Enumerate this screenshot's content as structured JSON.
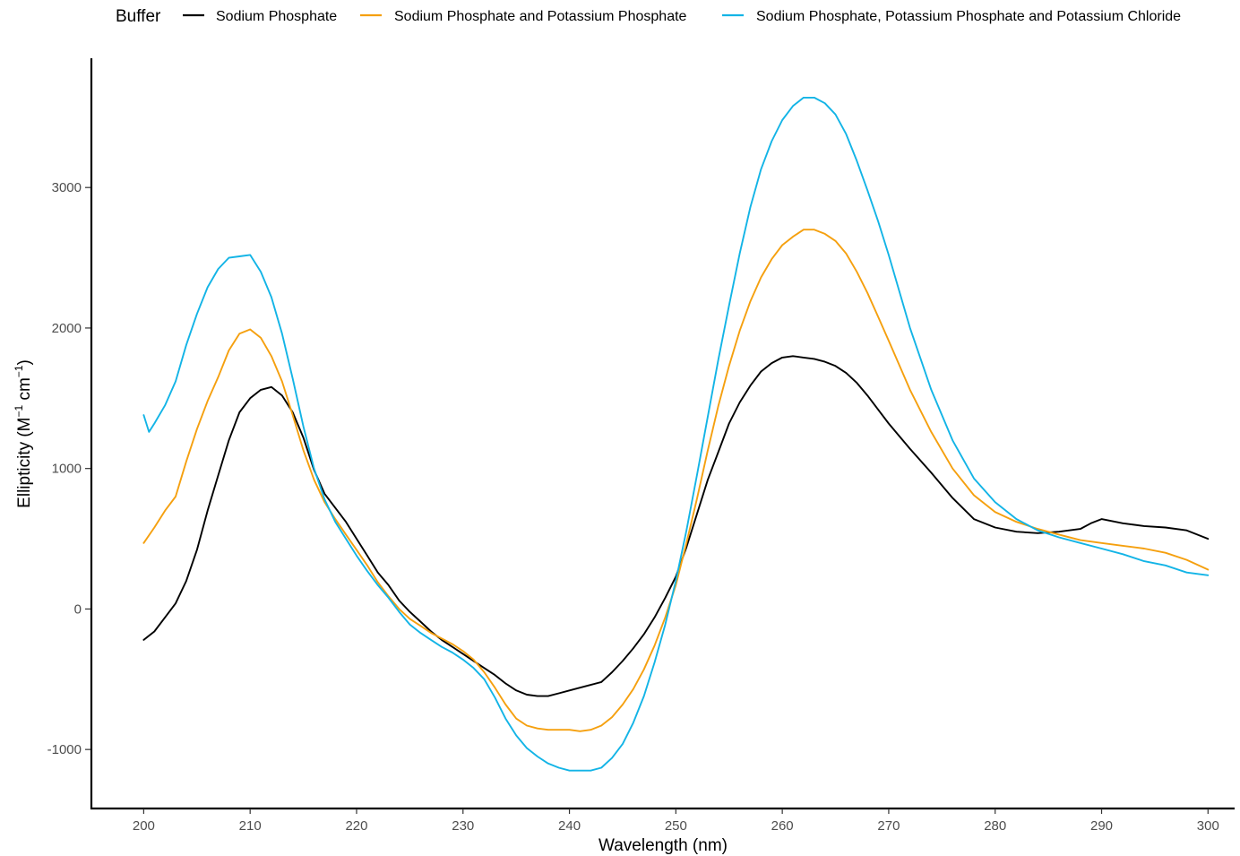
{
  "chart_data": {
    "type": "line",
    "legend": {
      "title": "Buffer",
      "position": "top"
    },
    "xlabel": "Wavelength (nm)",
    "ylabel": {
      "prefix": "Ellipticity  (M",
      "sup1": "−1",
      "mid": " cm",
      "sup2": "−1",
      "suffix": ")"
    },
    "xlim": [
      195,
      302.5
    ],
    "ylim": [
      -1420,
      3920
    ],
    "xticks": [
      200,
      210,
      220,
      230,
      240,
      250,
      260,
      270,
      280,
      290,
      300
    ],
    "xtick_labels": [
      "200",
      "210",
      "220",
      "230",
      "240",
      "250",
      "260",
      "270",
      "280",
      "290",
      "300"
    ],
    "yticks": [
      -1000,
      0,
      1000,
      2000,
      3000
    ],
    "ytick_labels": [
      "-1000",
      "0",
      "1000",
      "2000",
      "3000"
    ],
    "grid": false,
    "series": [
      {
        "name": "Sodium Phosphate",
        "color": "#000000",
        "x": [
          200,
          201,
          202,
          203,
          204,
          205,
          206,
          207,
          208,
          209,
          210,
          211,
          212,
          213,
          214,
          215,
          216,
          217,
          218,
          219,
          220,
          221,
          222,
          223,
          224,
          225,
          226,
          227,
          228,
          229,
          230,
          231,
          232,
          233,
          234,
          235,
          236,
          237,
          238,
          239,
          240,
          241,
          242,
          243,
          244,
          245,
          246,
          247,
          248,
          249,
          250,
          251,
          252,
          253,
          254,
          255,
          256,
          257,
          258,
          259,
          260,
          261,
          262,
          263,
          264,
          265,
          266,
          267,
          268,
          269,
          270,
          272,
          274,
          276,
          278,
          280,
          282,
          284,
          286,
          288,
          289,
          290,
          292,
          294,
          296,
          298,
          300
        ],
        "y": [
          -220,
          -160,
          -60,
          40,
          200,
          420,
          700,
          950,
          1200,
          1400,
          1500,
          1560,
          1580,
          1520,
          1400,
          1220,
          990,
          820,
          720,
          620,
          500,
          380,
          260,
          170,
          60,
          -20,
          -90,
          -160,
          -220,
          -270,
          -320,
          -370,
          -420,
          -470,
          -530,
          -580,
          -610,
          -620,
          -620,
          -600,
          -580,
          -560,
          -540,
          -520,
          -450,
          -370,
          -280,
          -180,
          -60,
          80,
          230,
          440,
          680,
          920,
          1120,
          1320,
          1470,
          1590,
          1690,
          1750,
          1790,
          1800,
          1790,
          1780,
          1760,
          1730,
          1680,
          1610,
          1520,
          1420,
          1320,
          1140,
          970,
          790,
          640,
          580,
          550,
          540,
          550,
          570,
          610,
          640,
          610,
          590,
          580,
          560,
          500
        ]
      },
      {
        "name": "Sodium Phosphate and Potassium Phosphate",
        "color": "#F5A00F",
        "x": [
          200,
          201,
          202,
          203,
          204,
          205,
          206,
          207,
          208,
          209,
          210,
          211,
          212,
          213,
          214,
          215,
          216,
          217,
          218,
          219,
          220,
          221,
          222,
          223,
          224,
          225,
          226,
          227,
          228,
          229,
          230,
          231,
          232,
          233,
          234,
          235,
          236,
          237,
          238,
          239,
          240,
          241,
          242,
          243,
          244,
          245,
          246,
          247,
          248,
          249,
          250,
          251,
          252,
          253,
          254,
          255,
          256,
          257,
          258,
          259,
          260,
          261,
          262,
          263,
          264,
          265,
          266,
          267,
          268,
          269,
          270,
          272,
          274,
          276,
          278,
          280,
          282,
          284,
          286,
          288,
          290,
          292,
          294,
          296,
          298,
          300
        ],
        "y": [
          470,
          580,
          700,
          800,
          1050,
          1280,
          1480,
          1650,
          1840,
          1960,
          1990,
          1930,
          1800,
          1620,
          1380,
          1130,
          920,
          760,
          640,
          530,
          420,
          310,
          190,
          90,
          0,
          -70,
          -120,
          -170,
          -210,
          -250,
          -300,
          -360,
          -450,
          -560,
          -680,
          -780,
          -830,
          -850,
          -860,
          -860,
          -860,
          -870,
          -860,
          -830,
          -770,
          -680,
          -570,
          -430,
          -260,
          -60,
          170,
          470,
          790,
          1130,
          1450,
          1730,
          1980,
          2190,
          2360,
          2490,
          2590,
          2650,
          2700,
          2700,
          2670,
          2620,
          2530,
          2400,
          2250,
          2080,
          1910,
          1560,
          1260,
          1000,
          810,
          690,
          620,
          570,
          530,
          490,
          470,
          450,
          430,
          400,
          350,
          280
        ]
      },
      {
        "name": "Sodium Phosphate, Potassium Phosphate and Potassium Chloride",
        "color": "#13B4E6",
        "x": [
          200,
          200.5,
          201,
          202,
          203,
          204,
          205,
          206,
          207,
          208,
          209,
          210,
          211,
          212,
          213,
          214,
          215,
          216,
          217,
          218,
          219,
          220,
          221,
          222,
          223,
          224,
          225,
          226,
          227,
          228,
          229,
          230,
          231,
          232,
          233,
          234,
          235,
          236,
          237,
          238,
          239,
          240,
          241,
          242,
          243,
          244,
          245,
          246,
          247,
          248,
          249,
          250,
          251,
          252,
          253,
          254,
          255,
          256,
          257,
          258,
          259,
          260,
          261,
          262,
          263,
          264,
          265,
          266,
          267,
          268,
          269,
          270,
          272,
          274,
          276,
          278,
          280,
          282,
          284,
          286,
          288,
          290,
          292,
          294,
          296,
          298,
          300
        ],
        "y": [
          1380,
          1260,
          1320,
          1450,
          1620,
          1880,
          2100,
          2290,
          2420,
          2500,
          2510,
          2520,
          2400,
          2220,
          1960,
          1640,
          1300,
          1000,
          780,
          620,
          500,
          380,
          270,
          170,
          80,
          -20,
          -110,
          -170,
          -220,
          -270,
          -310,
          -360,
          -420,
          -500,
          -630,
          -780,
          -900,
          -990,
          -1050,
          -1100,
          -1130,
          -1150,
          -1150,
          -1150,
          -1130,
          -1060,
          -960,
          -810,
          -620,
          -380,
          -110,
          200,
          560,
          960,
          1370,
          1780,
          2160,
          2530,
          2860,
          3130,
          3330,
          3480,
          3580,
          3640,
          3640,
          3600,
          3520,
          3380,
          3190,
          2980,
          2760,
          2520,
          2000,
          1560,
          1200,
          930,
          760,
          640,
          560,
          510,
          470,
          430,
          390,
          340,
          310,
          260,
          240
        ]
      }
    ]
  }
}
